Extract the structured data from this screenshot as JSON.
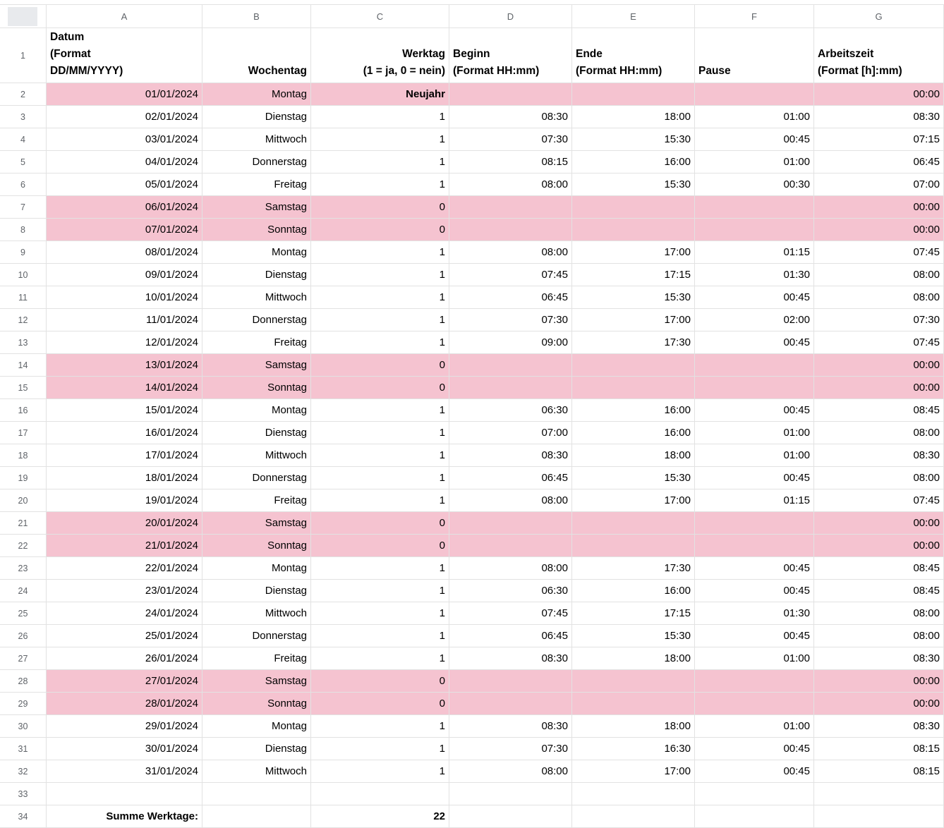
{
  "sheet": {
    "columns": [
      "A",
      "B",
      "C",
      "D",
      "E",
      "F",
      "G"
    ],
    "header_align": [
      "left",
      "right",
      "right",
      "left",
      "left",
      "left",
      "left"
    ],
    "colors": {
      "weekend_row": "#f5c3d0",
      "gridline": "#e2e2e2",
      "header_text": "#5f6368"
    },
    "summary": {
      "label": "Summe Werktage:",
      "value": "22"
    },
    "rows": [
      {
        "num": 1,
        "cells": [
          "Datum\n(Format\nDD/MM/YYYY)",
          "Wochentag",
          "Werktag\n(1 = ja, 0 = nein)",
          "Beginn\n(Format HH:mm)",
          "Ende\n(Format HH:mm)",
          "Pause",
          "Arbeitszeit\n(Format [h]:mm)"
        ],
        "pink": false,
        "bold": []
      },
      {
        "num": 2,
        "cells": [
          "01/01/2024",
          "Montag",
          "Neujahr",
          "",
          "",
          "",
          "00:00"
        ],
        "pink": true,
        "bold": [
          2
        ]
      },
      {
        "num": 3,
        "cells": [
          "02/01/2024",
          "Dienstag",
          "1",
          "08:30",
          "18:00",
          "01:00",
          "08:30"
        ],
        "pink": false,
        "bold": []
      },
      {
        "num": 4,
        "cells": [
          "03/01/2024",
          "Mittwoch",
          "1",
          "07:30",
          "15:30",
          "00:45",
          "07:15"
        ],
        "pink": false,
        "bold": []
      },
      {
        "num": 5,
        "cells": [
          "04/01/2024",
          "Donnerstag",
          "1",
          "08:15",
          "16:00",
          "01:00",
          "06:45"
        ],
        "pink": false,
        "bold": []
      },
      {
        "num": 6,
        "cells": [
          "05/01/2024",
          "Freitag",
          "1",
          "08:00",
          "15:30",
          "00:30",
          "07:00"
        ],
        "pink": false,
        "bold": []
      },
      {
        "num": 7,
        "cells": [
          "06/01/2024",
          "Samstag",
          "0",
          "",
          "",
          "",
          "00:00"
        ],
        "pink": true,
        "bold": []
      },
      {
        "num": 8,
        "cells": [
          "07/01/2024",
          "Sonntag",
          "0",
          "",
          "",
          "",
          "00:00"
        ],
        "pink": true,
        "bold": []
      },
      {
        "num": 9,
        "cells": [
          "08/01/2024",
          "Montag",
          "1",
          "08:00",
          "17:00",
          "01:15",
          "07:45"
        ],
        "pink": false,
        "bold": []
      },
      {
        "num": 10,
        "cells": [
          "09/01/2024",
          "Dienstag",
          "1",
          "07:45",
          "17:15",
          "01:30",
          "08:00"
        ],
        "pink": false,
        "bold": []
      },
      {
        "num": 11,
        "cells": [
          "10/01/2024",
          "Mittwoch",
          "1",
          "06:45",
          "15:30",
          "00:45",
          "08:00"
        ],
        "pink": false,
        "bold": []
      },
      {
        "num": 12,
        "cells": [
          "11/01/2024",
          "Donnerstag",
          "1",
          "07:30",
          "17:00",
          "02:00",
          "07:30"
        ],
        "pink": false,
        "bold": []
      },
      {
        "num": 13,
        "cells": [
          "12/01/2024",
          "Freitag",
          "1",
          "09:00",
          "17:30",
          "00:45",
          "07:45"
        ],
        "pink": false,
        "bold": []
      },
      {
        "num": 14,
        "cells": [
          "13/01/2024",
          "Samstag",
          "0",
          "",
          "",
          "",
          "00:00"
        ],
        "pink": true,
        "bold": []
      },
      {
        "num": 15,
        "cells": [
          "14/01/2024",
          "Sonntag",
          "0",
          "",
          "",
          "",
          "00:00"
        ],
        "pink": true,
        "bold": []
      },
      {
        "num": 16,
        "cells": [
          "15/01/2024",
          "Montag",
          "1",
          "06:30",
          "16:00",
          "00:45",
          "08:45"
        ],
        "pink": false,
        "bold": []
      },
      {
        "num": 17,
        "cells": [
          "16/01/2024",
          "Dienstag",
          "1",
          "07:00",
          "16:00",
          "01:00",
          "08:00"
        ],
        "pink": false,
        "bold": []
      },
      {
        "num": 18,
        "cells": [
          "17/01/2024",
          "Mittwoch",
          "1",
          "08:30",
          "18:00",
          "01:00",
          "08:30"
        ],
        "pink": false,
        "bold": []
      },
      {
        "num": 19,
        "cells": [
          "18/01/2024",
          "Donnerstag",
          "1",
          "06:45",
          "15:30",
          "00:45",
          "08:00"
        ],
        "pink": false,
        "bold": []
      },
      {
        "num": 20,
        "cells": [
          "19/01/2024",
          "Freitag",
          "1",
          "08:00",
          "17:00",
          "01:15",
          "07:45"
        ],
        "pink": false,
        "bold": []
      },
      {
        "num": 21,
        "cells": [
          "20/01/2024",
          "Samstag",
          "0",
          "",
          "",
          "",
          "00:00"
        ],
        "pink": true,
        "bold": []
      },
      {
        "num": 22,
        "cells": [
          "21/01/2024",
          "Sonntag",
          "0",
          "",
          "",
          "",
          "00:00"
        ],
        "pink": true,
        "bold": []
      },
      {
        "num": 23,
        "cells": [
          "22/01/2024",
          "Montag",
          "1",
          "08:00",
          "17:30",
          "00:45",
          "08:45"
        ],
        "pink": false,
        "bold": []
      },
      {
        "num": 24,
        "cells": [
          "23/01/2024",
          "Dienstag",
          "1",
          "06:30",
          "16:00",
          "00:45",
          "08:45"
        ],
        "pink": false,
        "bold": []
      },
      {
        "num": 25,
        "cells": [
          "24/01/2024",
          "Mittwoch",
          "1",
          "07:45",
          "17:15",
          "01:30",
          "08:00"
        ],
        "pink": false,
        "bold": []
      },
      {
        "num": 26,
        "cells": [
          "25/01/2024",
          "Donnerstag",
          "1",
          "06:45",
          "15:30",
          "00:45",
          "08:00"
        ],
        "pink": false,
        "bold": []
      },
      {
        "num": 27,
        "cells": [
          "26/01/2024",
          "Freitag",
          "1",
          "08:30",
          "18:00",
          "01:00",
          "08:30"
        ],
        "pink": false,
        "bold": []
      },
      {
        "num": 28,
        "cells": [
          "27/01/2024",
          "Samstag",
          "0",
          "",
          "",
          "",
          "00:00"
        ],
        "pink": true,
        "bold": []
      },
      {
        "num": 29,
        "cells": [
          "28/01/2024",
          "Sonntag",
          "0",
          "",
          "",
          "",
          "00:00"
        ],
        "pink": true,
        "bold": []
      },
      {
        "num": 30,
        "cells": [
          "29/01/2024",
          "Montag",
          "1",
          "08:30",
          "18:00",
          "01:00",
          "08:30"
        ],
        "pink": false,
        "bold": []
      },
      {
        "num": 31,
        "cells": [
          "30/01/2024",
          "Dienstag",
          "1",
          "07:30",
          "16:30",
          "00:45",
          "08:15"
        ],
        "pink": false,
        "bold": []
      },
      {
        "num": 32,
        "cells": [
          "31/01/2024",
          "Mittwoch",
          "1",
          "08:00",
          "17:00",
          "00:45",
          "08:15"
        ],
        "pink": false,
        "bold": []
      },
      {
        "num": 33,
        "cells": [
          "",
          "",
          "",
          "",
          "",
          "",
          ""
        ],
        "pink": false,
        "bold": []
      },
      {
        "num": 34,
        "cells": [
          "Summe Werktage:",
          "",
          "22",
          "",
          "",
          "",
          ""
        ],
        "pink": false,
        "bold": [
          0,
          2
        ]
      }
    ]
  }
}
